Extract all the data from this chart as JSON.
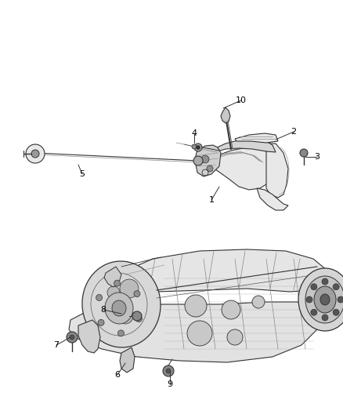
{
  "bg_color": "#ffffff",
  "line_color": "#888888",
  "dark_line": "#333333",
  "med_line": "#555555",
  "label_color": "#000000",
  "fig_width": 4.38,
  "fig_height": 5.33,
  "dpi": 100,
  "gray_fill": "#cccccc",
  "light_fill": "#e8e8e8",
  "mid_fill": "#aaaaaa"
}
